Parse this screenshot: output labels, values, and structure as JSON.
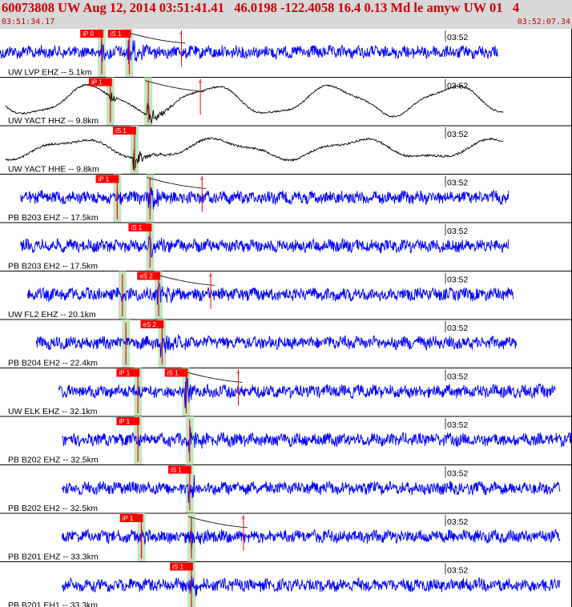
{
  "event": {
    "title": "60073808 UW Aug 12, 2014 03:51:41.41   46.0198 -122.4058 16.4 0.13 Md le amyw UW 01   4",
    "start_time": "03:51:34.17",
    "end_time": "03:52:07.34"
  },
  "colors": {
    "header_bg": "#d8d8d8",
    "title": "#cc0000",
    "trace_blue": "#0000ff",
    "trace_black": "#000000",
    "pick_red": "#ff0000",
    "pick_band": "#bfe6bf",
    "divider": "#000000"
  },
  "time_tick_label": "03:52",
  "traces": [
    {
      "label": "UW LVP EHZ -- 5.1km",
      "color": "black_blue",
      "picks": [
        {
          "text": "iP 0",
          "phase": "P",
          "t": 5.9
        },
        {
          "text": "iS 1",
          "phase": "S",
          "t": 7.5
        }
      ],
      "coda": true,
      "style": "blue"
    },
    {
      "label": "UW YACT HHZ -- 9.8km",
      "picks": [
        {
          "text": "iP 1",
          "phase": "P",
          "t": 6.4
        },
        {
          "text": "",
          "phase": "S",
          "t": 8.6
        }
      ],
      "coda": true,
      "style": "black-wave"
    },
    {
      "label": "UW YACT HHE -- 9.8km",
      "picks": [
        {
          "text": "iS 1",
          "phase": "S",
          "t": 7.8
        }
      ],
      "coda": false,
      "style": "black-wave2"
    },
    {
      "label": "PB B203 EHZ -- 17.5km",
      "picks": [
        {
          "text": "iP 1",
          "phase": "P",
          "t": 6.8
        },
        {
          "text": "",
          "phase": "S",
          "t": 8.7
        }
      ],
      "coda": true,
      "style": "blue"
    },
    {
      "label": "PB B203 EH2 -- 17.5km",
      "picks": [
        {
          "text": "iS 1",
          "phase": "S",
          "t": 8.7
        }
      ],
      "coda": false,
      "style": "blue"
    },
    {
      "label": "UW FL2 EHZ -- 20.1km",
      "picks": [
        {
          "text": "eS 2",
          "phase": "S",
          "t": 9.2
        },
        {
          "text": "",
          "phase": "P",
          "t": 7.1
        }
      ],
      "coda": true,
      "style": "blue"
    },
    {
      "label": "PB B204 EH2 -- 22.4km",
      "picks": [
        {
          "text": "eS 2",
          "phase": "S",
          "t": 9.4
        },
        {
          "text": "",
          "phase": "P",
          "t": 7.3
        }
      ],
      "coda": false,
      "style": "blue"
    },
    {
      "label": "UW ELK EHZ -- 32.1km",
      "picks": [
        {
          "text": "iP 1",
          "phase": "P",
          "t": 8.0
        },
        {
          "text": "iS 1",
          "phase": "S",
          "t": 10.8
        }
      ],
      "coda": true,
      "style": "blue"
    },
    {
      "label": "PB B202 EHZ -- 32.5km",
      "picks": [
        {
          "text": "iP 1",
          "phase": "P",
          "t": 8.0
        },
        {
          "text": "",
          "phase": "S",
          "t": 11.0
        }
      ],
      "coda": false,
      "style": "blue"
    },
    {
      "label": "PB B202 EH2 -- 32.5km",
      "picks": [
        {
          "text": "iS 1",
          "phase": "S",
          "t": 11.0
        }
      ],
      "coda": false,
      "style": "blue"
    },
    {
      "label": "PB B201 EHZ -- 33.3km",
      "picks": [
        {
          "text": "iP 1",
          "phase": "P",
          "t": 8.2
        },
        {
          "text": "",
          "phase": "S",
          "t": 11.1
        }
      ],
      "coda": true,
      "style": "blue"
    },
    {
      "label": "PB B201 EH1 -- 33.3km",
      "picks": [
        {
          "text": "iS 1",
          "phase": "S",
          "t": 11.1
        }
      ],
      "coda": false,
      "style": "blue"
    }
  ]
}
